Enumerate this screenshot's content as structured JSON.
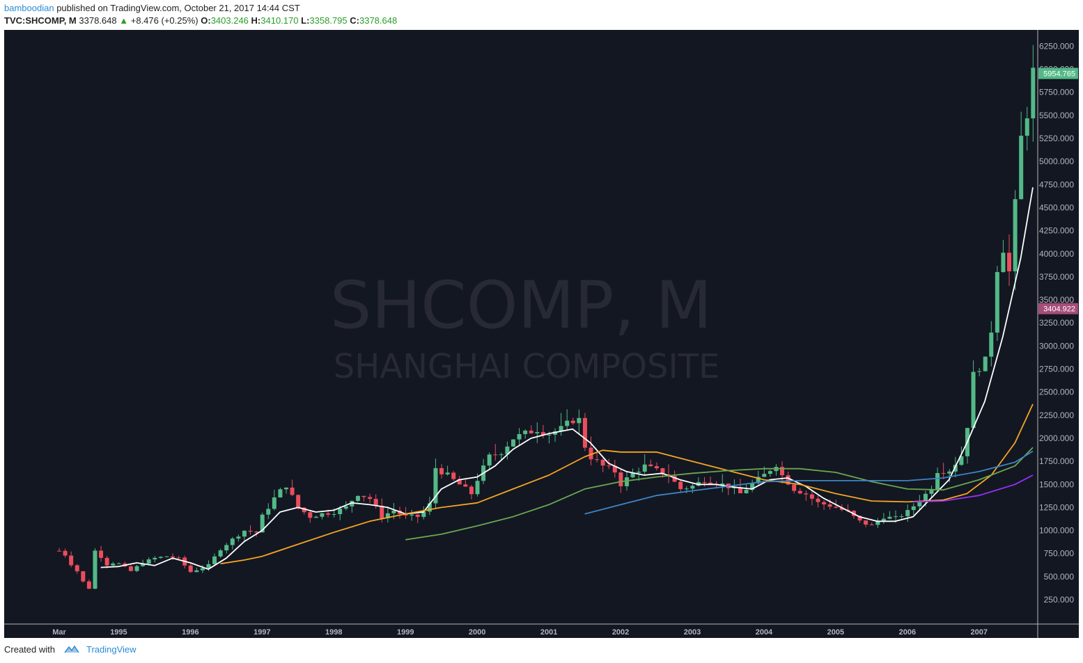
{
  "header": {
    "author": "bamboodian",
    "published_text": "published on TradingView.com, October 21, 2017 14:44 CST",
    "symbol": "TVC:SHCOMP, M",
    "last": "3378.648",
    "change": "+8.476 (+0.25%)",
    "open_label": "O:",
    "open": "3403.246",
    "high_label": "H:",
    "high": "3410.170",
    "low_label": "L:",
    "low": "3358.795",
    "close_label": "C:",
    "close": "3378.648"
  },
  "watermark": {
    "line1": "SHCOMP, M",
    "line2": "SHANGHAI COMPOSITE"
  },
  "footer": {
    "created_with": "Created with",
    "brand": "TradingView",
    "logo_icon": "tradingview-cloud-icon"
  },
  "colors": {
    "background": "#131722",
    "up": "#53b987",
    "down": "#eb4d5c",
    "ma_white": "#ffffff",
    "ma_orange": "#f5a623",
    "ma_green": "#6aa84f",
    "ma_blue": "#3d85c6",
    "ma_purple": "#9b30ff",
    "tag_green": "#53b987",
    "tag_pink": "#a64d79"
  },
  "chart_data": {
    "type": "candlestick",
    "y_ticks": [
      250,
      500,
      750,
      1000,
      1250,
      1500,
      1750,
      2000,
      2250,
      2500,
      2750,
      3000,
      3250,
      3500,
      3750,
      4000,
      4250,
      4500,
      4750,
      5000,
      5250,
      5500,
      5750,
      6000,
      6250
    ],
    "y_tick_labels": [
      "250.000",
      "500.000",
      "750.000",
      "1000.000",
      "1250.000",
      "1500.000",
      "1750.000",
      "2000.000",
      "2250.000",
      "2500.000",
      "2750.000",
      "3000.000",
      "3250.000",
      "3500.000",
      "3750.000",
      "4000.000",
      "4250.000",
      "4500.000",
      "4750.000",
      "5000.000",
      "5250.000",
      "5500.000",
      "5750.000",
      "6000.000",
      "6250.000"
    ],
    "ylim": [
      0,
      6500
    ],
    "x_ticks": [
      {
        "label": "Mar",
        "t": 1994.17
      },
      {
        "label": "1995",
        "t": 1995.0
      },
      {
        "label": "1996",
        "t": 1996.0
      },
      {
        "label": "1997",
        "t": 1997.0
      },
      {
        "label": "1998",
        "t": 1998.0
      },
      {
        "label": "1999",
        "t": 1999.0
      },
      {
        "label": "2000",
        "t": 2000.0
      },
      {
        "label": "2001",
        "t": 2001.0
      },
      {
        "label": "2002",
        "t": 2002.0
      },
      {
        "label": "2003",
        "t": 2003.0
      },
      {
        "label": "2004",
        "t": 2004.0
      },
      {
        "label": "2005",
        "t": 2005.0
      },
      {
        "label": "2006",
        "t": 2006.0
      },
      {
        "label": "2007",
        "t": 2007.0
      }
    ],
    "anchors": [
      {
        "t": 1994.17,
        "c": 780
      },
      {
        "t": 1994.25,
        "c": 740
      },
      {
        "t": 1994.33,
        "c": 640
      },
      {
        "t": 1994.42,
        "c": 560
      },
      {
        "t": 1994.5,
        "c": 450
      },
      {
        "t": 1994.58,
        "c": 340
      },
      {
        "t": 1994.67,
        "c": 780
      },
      {
        "t": 1994.75,
        "c": 720
      },
      {
        "t": 1994.83,
        "c": 630
      },
      {
        "t": 1994.92,
        "c": 650
      },
      {
        "t": 1995.0,
        "c": 640
      },
      {
        "t": 1995.17,
        "c": 560
      },
      {
        "t": 1995.33,
        "c": 650
      },
      {
        "t": 1995.5,
        "c": 700
      },
      {
        "t": 1995.67,
        "c": 720
      },
      {
        "t": 1995.83,
        "c": 700
      },
      {
        "t": 1996.0,
        "c": 550
      },
      {
        "t": 1996.25,
        "c": 620
      },
      {
        "t": 1996.42,
        "c": 800
      },
      {
        "t": 1996.58,
        "c": 900
      },
      {
        "t": 1996.75,
        "c": 1000
      },
      {
        "t": 1996.92,
        "c": 980
      },
      {
        "t": 1997.0,
        "c": 1150
      },
      {
        "t": 1997.17,
        "c": 1350
      },
      {
        "t": 1997.33,
        "c": 1500
      },
      {
        "t": 1997.5,
        "c": 1250
      },
      {
        "t": 1997.67,
        "c": 1150
      },
      {
        "t": 1997.83,
        "c": 1180
      },
      {
        "t": 1998.0,
        "c": 1200
      },
      {
        "t": 1998.17,
        "c": 1250
      },
      {
        "t": 1998.33,
        "c": 1400
      },
      {
        "t": 1998.5,
        "c": 1350
      },
      {
        "t": 1998.67,
        "c": 1150
      },
      {
        "t": 1998.83,
        "c": 1220
      },
      {
        "t": 1999.0,
        "c": 1150
      },
      {
        "t": 1999.17,
        "c": 1150
      },
      {
        "t": 1999.33,
        "c": 1250
      },
      {
        "t": 1999.42,
        "c": 1680
      },
      {
        "t": 1999.58,
        "c": 1600
      },
      {
        "t": 1999.75,
        "c": 1500
      },
      {
        "t": 1999.92,
        "c": 1400
      },
      {
        "t": 2000.0,
        "c": 1550
      },
      {
        "t": 2000.17,
        "c": 1800
      },
      {
        "t": 2000.33,
        "c": 1850
      },
      {
        "t": 2000.5,
        "c": 2000
      },
      {
        "t": 2000.67,
        "c": 2050
      },
      {
        "t": 2000.83,
        "c": 2100
      },
      {
        "t": 2001.0,
        "c": 2050
      },
      {
        "t": 2001.17,
        "c": 2100
      },
      {
        "t": 2001.33,
        "c": 2200
      },
      {
        "t": 2001.42,
        "c": 2200
      },
      {
        "t": 2001.5,
        "c": 1920
      },
      {
        "t": 2001.58,
        "c": 1800
      },
      {
        "t": 2001.75,
        "c": 1700
      },
      {
        "t": 2001.92,
        "c": 1640
      },
      {
        "t": 2002.0,
        "c": 1500
      },
      {
        "t": 2002.17,
        "c": 1620
      },
      {
        "t": 2002.33,
        "c": 1700
      },
      {
        "t": 2002.5,
        "c": 1650
      },
      {
        "t": 2002.67,
        "c": 1600
      },
      {
        "t": 2002.83,
        "c": 1450
      },
      {
        "t": 2003.0,
        "c": 1480
      },
      {
        "t": 2003.17,
        "c": 1550
      },
      {
        "t": 2003.33,
        "c": 1520
      },
      {
        "t": 2003.5,
        "c": 1480
      },
      {
        "t": 2003.67,
        "c": 1400
      },
      {
        "t": 2003.83,
        "c": 1500
      },
      {
        "t": 2004.0,
        "c": 1600
      },
      {
        "t": 2004.17,
        "c": 1720
      },
      {
        "t": 2004.25,
        "c": 1600
      },
      {
        "t": 2004.42,
        "c": 1450
      },
      {
        "t": 2004.58,
        "c": 1400
      },
      {
        "t": 2004.75,
        "c": 1300
      },
      {
        "t": 2004.92,
        "c": 1270
      },
      {
        "t": 2005.0,
        "c": 1250
      },
      {
        "t": 2005.17,
        "c": 1200
      },
      {
        "t": 2005.33,
        "c": 1100
      },
      {
        "t": 2005.5,
        "c": 1050
      },
      {
        "t": 2005.67,
        "c": 1150
      },
      {
        "t": 2005.83,
        "c": 1130
      },
      {
        "t": 2006.0,
        "c": 1200
      },
      {
        "t": 2006.17,
        "c": 1330
      },
      {
        "t": 2006.33,
        "c": 1450
      },
      {
        "t": 2006.42,
        "c": 1650
      },
      {
        "t": 2006.58,
        "c": 1650
      },
      {
        "t": 2006.75,
        "c": 1800
      },
      {
        "t": 2006.83,
        "c": 2100
      },
      {
        "t": 2006.92,
        "c": 2680
      },
      {
        "t": 2007.0,
        "c": 2780
      },
      {
        "t": 2007.08,
        "c": 2800
      },
      {
        "t": 2007.17,
        "c": 3180
      },
      {
        "t": 2007.25,
        "c": 3850
      },
      {
        "t": 2007.33,
        "c": 4100
      },
      {
        "t": 2007.42,
        "c": 3800
      },
      {
        "t": 2007.5,
        "c": 4480
      },
      {
        "t": 2007.58,
        "c": 5220
      },
      {
        "t": 2007.67,
        "c": 5550
      },
      {
        "t": 2007.75,
        "c": 5955
      }
    ],
    "series": [
      {
        "color": "#ffffff",
        "points": [
          [
            1994.75,
            600
          ],
          [
            1995.0,
            610
          ],
          [
            1995.25,
            650
          ],
          [
            1995.5,
            620
          ],
          [
            1995.75,
            700
          ],
          [
            1996.0,
            650
          ],
          [
            1996.25,
            580
          ],
          [
            1996.5,
            700
          ],
          [
            1996.75,
            880
          ],
          [
            1997.0,
            1000
          ],
          [
            1997.25,
            1200
          ],
          [
            1997.5,
            1250
          ],
          [
            1997.75,
            1200
          ],
          [
            1998.0,
            1220
          ],
          [
            1998.25,
            1300
          ],
          [
            1998.5,
            1280
          ],
          [
            1998.75,
            1250
          ],
          [
            1999.0,
            1180
          ],
          [
            1999.25,
            1200
          ],
          [
            1999.5,
            1450
          ],
          [
            1999.75,
            1550
          ],
          [
            2000.0,
            1580
          ],
          [
            2000.25,
            1700
          ],
          [
            2000.5,
            1880
          ],
          [
            2000.75,
            2000
          ],
          [
            2001.0,
            2050
          ],
          [
            2001.33,
            2100
          ],
          [
            2001.58,
            1950
          ],
          [
            2001.83,
            1730
          ],
          [
            2002.08,
            1640
          ],
          [
            2002.33,
            1600
          ],
          [
            2002.58,
            1620
          ],
          [
            2002.83,
            1550
          ],
          [
            2003.08,
            1500
          ],
          [
            2003.33,
            1500
          ],
          [
            2003.58,
            1470
          ],
          [
            2003.83,
            1450
          ],
          [
            2004.08,
            1550
          ],
          [
            2004.33,
            1570
          ],
          [
            2004.58,
            1480
          ],
          [
            2004.83,
            1350
          ],
          [
            2005.08,
            1250
          ],
          [
            2005.33,
            1150
          ],
          [
            2005.58,
            1100
          ],
          [
            2005.83,
            1100
          ],
          [
            2006.08,
            1150
          ],
          [
            2006.33,
            1350
          ],
          [
            2006.58,
            1550
          ],
          [
            2006.83,
            1950
          ],
          [
            2007.08,
            2400
          ],
          [
            2007.33,
            3100
          ],
          [
            2007.58,
            3950
          ],
          [
            2007.75,
            4720
          ]
        ]
      },
      {
        "color": "#f5a623",
        "points": [
          [
            1996.42,
            640
          ],
          [
            1996.75,
            680
          ],
          [
            1997.0,
            720
          ],
          [
            1997.5,
            850
          ],
          [
            1998.0,
            980
          ],
          [
            1998.5,
            1100
          ],
          [
            1999.0,
            1180
          ],
          [
            1999.5,
            1250
          ],
          [
            2000.0,
            1300
          ],
          [
            2000.5,
            1450
          ],
          [
            2001.0,
            1600
          ],
          [
            2001.5,
            1800
          ],
          [
            2001.75,
            1870
          ],
          [
            2002.0,
            1850
          ],
          [
            2002.5,
            1850
          ],
          [
            2003.0,
            1750
          ],
          [
            2003.5,
            1650
          ],
          [
            2004.0,
            1550
          ],
          [
            2004.5,
            1500
          ],
          [
            2005.0,
            1400
          ],
          [
            2005.5,
            1320
          ],
          [
            2006.0,
            1310
          ],
          [
            2006.5,
            1330
          ],
          [
            2006.83,
            1400
          ],
          [
            2007.17,
            1600
          ],
          [
            2007.5,
            1950
          ],
          [
            2007.75,
            2370
          ]
        ]
      },
      {
        "color": "#6aa84f",
        "points": [
          [
            1999.0,
            900
          ],
          [
            1999.5,
            960
          ],
          [
            2000.0,
            1050
          ],
          [
            2000.5,
            1150
          ],
          [
            2001.0,
            1280
          ],
          [
            2001.5,
            1450
          ],
          [
            2002.0,
            1530
          ],
          [
            2002.5,
            1580
          ],
          [
            2003.0,
            1620
          ],
          [
            2003.5,
            1650
          ],
          [
            2004.0,
            1670
          ],
          [
            2004.5,
            1670
          ],
          [
            2005.0,
            1630
          ],
          [
            2005.5,
            1530
          ],
          [
            2006.0,
            1450
          ],
          [
            2006.5,
            1440
          ],
          [
            2007.0,
            1550
          ],
          [
            2007.5,
            1700
          ],
          [
            2007.75,
            1900
          ]
        ]
      },
      {
        "color": "#3d85c6",
        "points": [
          [
            2001.5,
            1180
          ],
          [
            2002.0,
            1280
          ],
          [
            2002.5,
            1380
          ],
          [
            2003.0,
            1430
          ],
          [
            2003.5,
            1480
          ],
          [
            2004.0,
            1530
          ],
          [
            2004.5,
            1540
          ],
          [
            2005.0,
            1540
          ],
          [
            2005.5,
            1540
          ],
          [
            2006.0,
            1540
          ],
          [
            2006.5,
            1570
          ],
          [
            2007.0,
            1640
          ],
          [
            2007.5,
            1740
          ],
          [
            2007.75,
            1860
          ]
        ]
      },
      {
        "color": "#9b30ff",
        "points": [
          [
            2006.08,
            1310
          ],
          [
            2006.5,
            1320
          ],
          [
            2007.0,
            1380
          ],
          [
            2007.5,
            1500
          ],
          [
            2007.75,
            1600
          ]
        ]
      }
    ],
    "price_tags": [
      {
        "value": 5954.765,
        "label": "5954.765",
        "color": "#53b987"
      },
      {
        "value": 3404.922,
        "label": "3404.922",
        "color": "#a64d79"
      }
    ]
  }
}
